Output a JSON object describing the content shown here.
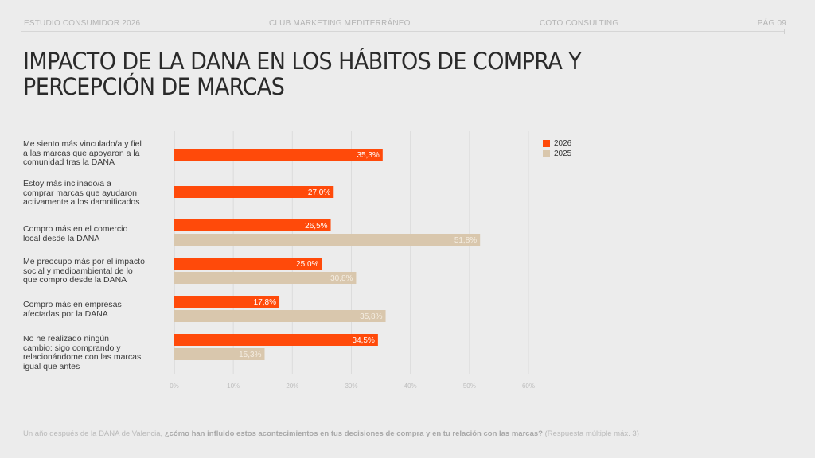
{
  "header": {
    "left": "ESTUDIO CONSUMIDOR 2026",
    "center": "CLUB MARKETING MEDITERRÁNEO",
    "right": "COTO CONSULTING",
    "page": "PÁG 09"
  },
  "title": "IMPACTO DE LA DANA EN LOS HÁBITOS DE COMPRA Y PERCEPCIÓN DE MARCAS",
  "footer": {
    "intro": "Un año después de la DANA de Valencia, ",
    "question": "¿cómo han influido estos acontecimientos en tus decisiones de compra y en tu relación con las marcas?",
    "note": " (Respuesta múltiple máx. 3)"
  },
  "colors": {
    "series_2026": "#ff4a0a",
    "series_2025": "#d9c7ad",
    "grid": "#dcdcdc",
    "tick_label": "#bdbdbd"
  },
  "chart_data": {
    "type": "bar",
    "orientation": "horizontal",
    "title": "IMPACTO DE LA DANA EN LOS HÁBITOS DE COMPRA Y PERCEPCIÓN DE MARCAS",
    "xlabel": "",
    "ylabel": "",
    "xlim": [
      0,
      60
    ],
    "x_ticks": [
      "0%",
      "10%",
      "20%",
      "30%",
      "40%",
      "50%",
      "60%"
    ],
    "grid": true,
    "legend_position": "top-right",
    "categories": [
      "Me siento más vinculado/a y fiel a las marcas que apoyaron a la comunidad tras la DANA",
      "Estoy más inclinado/a a comprar marcas que ayudaron activamente a los damnificados",
      "Compro más en el comercio local desde la DANA",
      "Me preocupo más por el impacto social y medioambiental de lo que compro desde la DANA",
      "Compro más en empresas afectadas por la DANA",
      "No he realizado ningún cambio: sigo comprando y relacionándome con las marcas igual que antes"
    ],
    "category_lines": [
      [
        "Me siento más vinculado/a y fiel",
        "a las marcas que apoyaron a la",
        "comunidad tras la DANA"
      ],
      [
        "Estoy más inclinado/a a",
        "comprar marcas que ayudaron",
        "activamente a los damnificados"
      ],
      [
        "Compro más en el comercio",
        "local desde la DANA"
      ],
      [
        "Me preocupo más por el impacto",
        "social y medioambiental de lo",
        "que compro desde la DANA"
      ],
      [
        "Compro más en empresas",
        "afectadas por la DANA"
      ],
      [
        "No he realizado ningún",
        "cambio: sigo comprando y",
        "relacionándome con las marcas",
        "igual que antes"
      ]
    ],
    "series": [
      {
        "name": "2026",
        "values": [
          35.3,
          27.0,
          26.5,
          25.0,
          17.8,
          34.5
        ],
        "labels": [
          "35,3%",
          "27,0%",
          "26,5%",
          "25,0%",
          "17,8%",
          "34,5%"
        ]
      },
      {
        "name": "2025",
        "values": [
          null,
          null,
          51.8,
          30.8,
          35.8,
          15.3
        ],
        "labels": [
          null,
          null,
          "51,8%",
          "30,8%",
          "35,8%",
          "15,3%"
        ]
      }
    ]
  }
}
